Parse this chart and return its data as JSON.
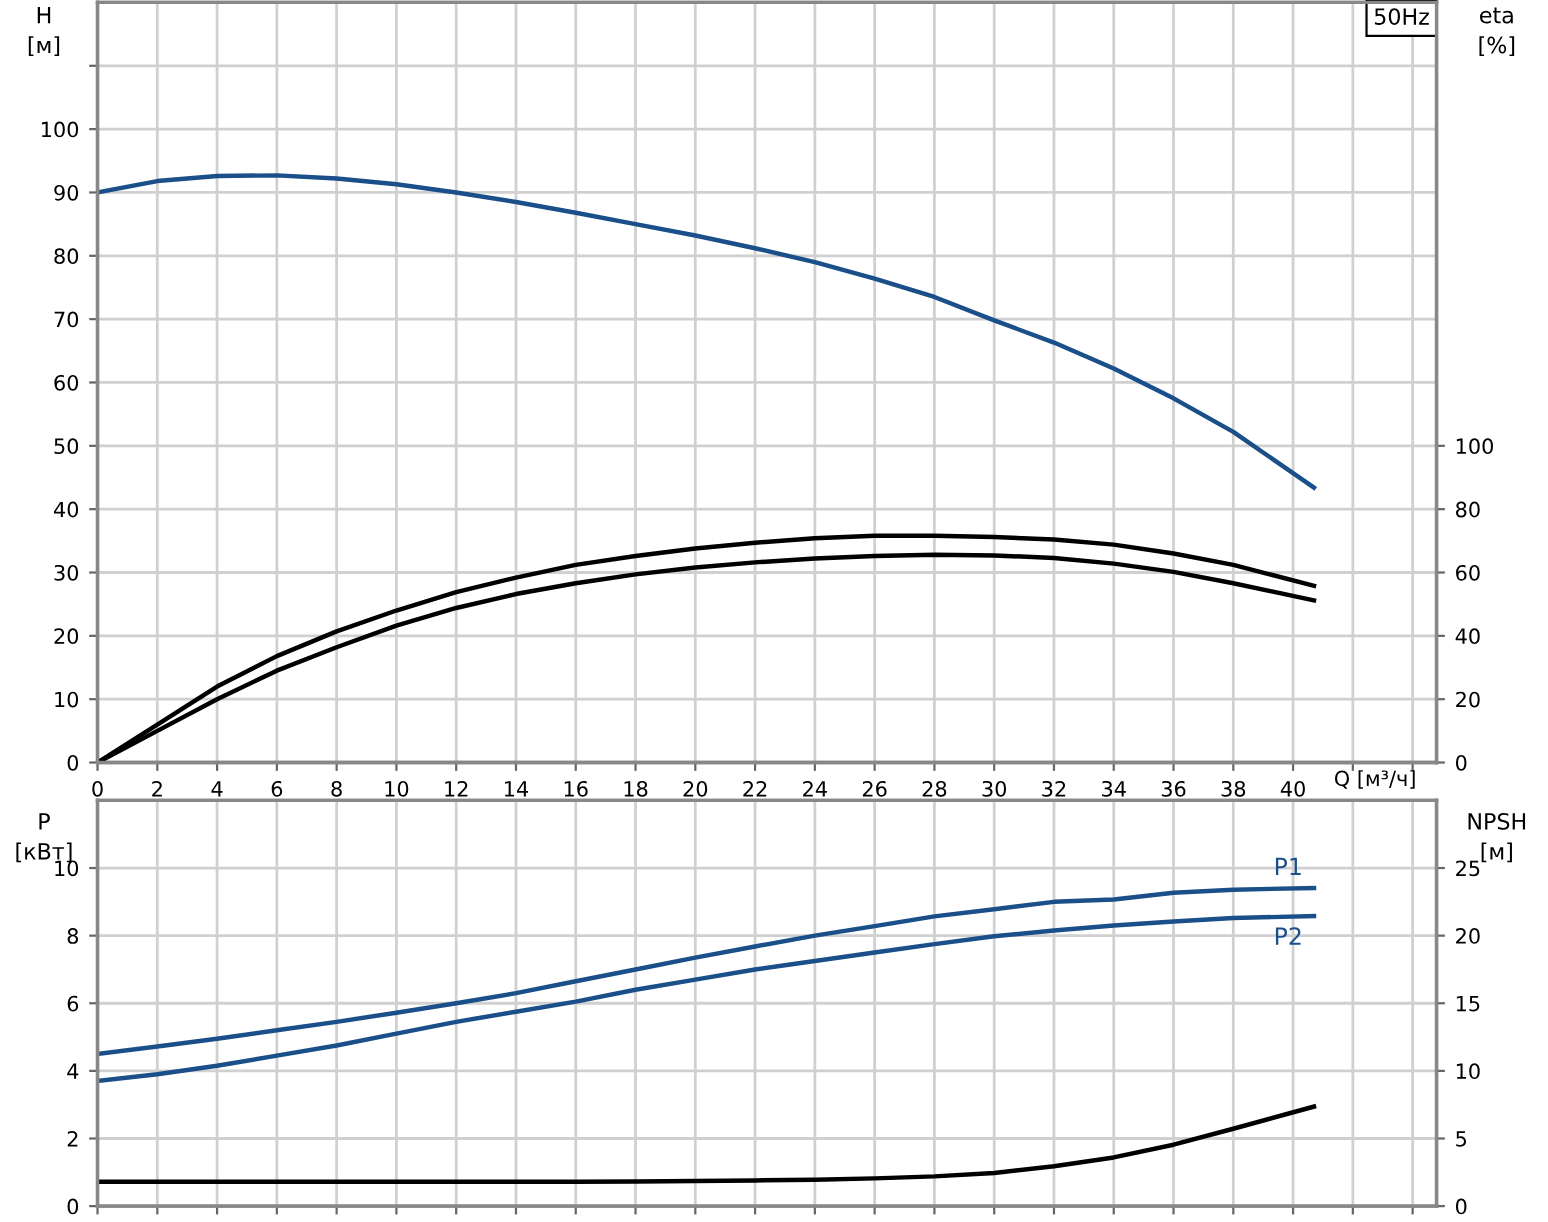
{
  "chart_data": [
    {
      "type": "line",
      "ylabel": "H\n[м]",
      "y2label": "eta\n[%]",
      "xlabel": "Q [м³/ч]",
      "annotations": [
        "50Hz"
      ],
      "grid": true,
      "legend": false,
      "marker": "none",
      "line_style": "solid",
      "x": [
        0,
        2,
        4,
        6,
        8,
        10,
        12,
        14,
        16,
        18,
        20,
        22,
        24,
        26,
        28,
        30,
        32,
        34,
        36,
        38,
        40.7
      ],
      "xlim": [
        0,
        44.8
      ],
      "xticks": [
        0,
        2,
        4,
        6,
        8,
        10,
        12,
        14,
        16,
        18,
        20,
        22,
        24,
        26,
        28,
        30,
        32,
        34,
        36,
        38,
        40,
        {
          "value": 42,
          "label": null
        },
        {
          "value": 44,
          "label": null
        }
      ],
      "ylim": [
        0,
        120
      ],
      "yticks": [
        0,
        10,
        20,
        30,
        40,
        50,
        60,
        70,
        80,
        90,
        100,
        {
          "value": 110,
          "label": null
        }
      ],
      "y2lim": [
        0,
        240
      ],
      "y2ticks": [
        0,
        20,
        40,
        60,
        80,
        100
      ],
      "series": [
        {
          "color": "#1a4f8a",
          "values": [
            90,
            91.8,
            92.6,
            92.7,
            92.2,
            91.3,
            90,
            88.5,
            86.8,
            85,
            83.2,
            81.2,
            79,
            76.4,
            73.5,
            69.8,
            66.3,
            62.2,
            57.5,
            52.2,
            43.4
          ]
        },
        {
          "color": "#000000",
          "axis": "y2",
          "values": [
            0,
            12,
            24,
            33.6,
            41.4,
            48,
            53.8,
            58.4,
            62.4,
            65.2,
            67.6,
            69.4,
            70.8,
            71.6,
            71.6,
            71.2,
            70.4,
            68.8,
            66,
            62.4,
            55.8
          ]
        },
        {
          "color": "#000000",
          "axis": "y2",
          "values": [
            0,
            10,
            20,
            29,
            36.4,
            43.2,
            48.8,
            53.2,
            56.6,
            59.4,
            61.6,
            63.2,
            64.4,
            65.2,
            65.6,
            65.4,
            64.6,
            62.8,
            60.2,
            56.6,
            51.2
          ]
        }
      ]
    },
    {
      "type": "line",
      "ylabel": "P\n[кВт]",
      "y2label": "NPSH\n[м]",
      "grid": true,
      "legend": false,
      "marker": "none",
      "line_style": "solid",
      "tick_labels": "y",
      "x": [
        0,
        2,
        4,
        6,
        8,
        10,
        12,
        14,
        16,
        18,
        20,
        22,
        24,
        26,
        28,
        30,
        32,
        34,
        36,
        38,
        40.7
      ],
      "xlim": [
        0,
        44.8
      ],
      "xticks": [
        0,
        2,
        4,
        6,
        8,
        10,
        12,
        14,
        16,
        18,
        20,
        22,
        24,
        26,
        28,
        30,
        32,
        34,
        36,
        38,
        40,
        42,
        44
      ],
      "ylim": [
        0,
        12
      ],
      "yticks": [
        0,
        2,
        4,
        6,
        8,
        10
      ],
      "y2lim": [
        0,
        30
      ],
      "y2ticks": [
        0,
        5,
        10,
        15,
        20,
        25
      ],
      "series": [
        {
          "name": "P1",
          "color": "#1a4f8a",
          "values": [
            4.5,
            4.72,
            4.95,
            5.2,
            5.45,
            5.72,
            6.0,
            6.3,
            6.65,
            7.0,
            7.35,
            7.68,
            8.0,
            8.28,
            8.57,
            8.78,
            9.0,
            9.07,
            9.27,
            9.36,
            9.41
          ]
        },
        {
          "name": "P2",
          "color": "#1a4f8a",
          "values": [
            3.7,
            3.9,
            4.15,
            4.45,
            4.75,
            5.1,
            5.45,
            5.75,
            6.05,
            6.4,
            6.7,
            7.0,
            7.25,
            7.5,
            7.75,
            7.98,
            8.15,
            8.3,
            8.42,
            8.52,
            8.58
          ]
        },
        {
          "color": "#000000",
          "axis": "y2",
          "values": [
            1.8,
            1.8,
            1.8,
            1.8,
            1.8,
            1.8,
            1.8,
            1.8,
            1.8,
            1.82,
            1.85,
            1.9,
            1.95,
            2.05,
            2.2,
            2.45,
            2.95,
            3.6,
            4.54,
            5.72,
            7.36
          ]
        }
      ]
    }
  ]
}
